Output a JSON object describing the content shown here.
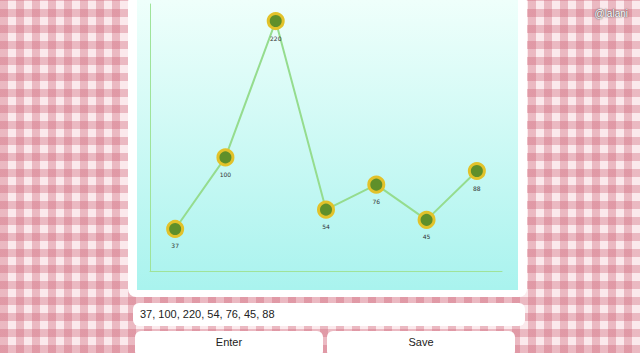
{
  "chart_data": {
    "type": "line",
    "categories": [
      null,
      null,
      null,
      null,
      null,
      null,
      null
    ],
    "values": [
      37,
      100,
      220,
      54,
      76,
      45,
      88
    ],
    "color": "#95dc8e",
    "marker": "circle",
    "line_style": "solid",
    "ylim": [
      0,
      235
    ],
    "grid": false,
    "data_labels": true,
    "tick_labels": false
  },
  "page": {
    "input": "37, 100, 220, 54, 76, 45, 88",
    "buttons": [
      "Enter",
      "Save"
    ],
    "watermark": "@lalani"
  }
}
